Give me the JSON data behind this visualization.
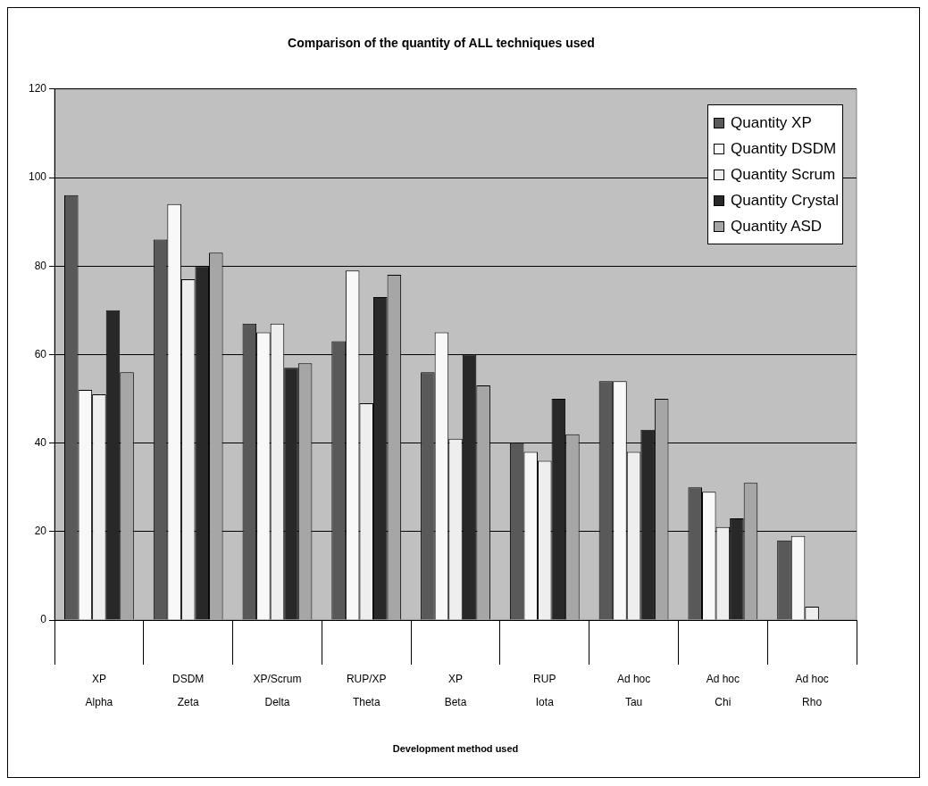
{
  "chart_data": {
    "type": "bar",
    "title": "Comparison of the quantity of ALL techniques used",
    "xlabel": "Development method used",
    "categories": [
      "XP\nAlpha",
      "DSDM\nZeta",
      "XP/Scrum\nDelta",
      "RUP/XP\nTheta",
      "XP\nBeta",
      "RUP\nIota",
      "Ad hoc\nTau",
      "Ad hoc\nChi",
      "Ad hoc\nRho"
    ],
    "series": [
      {
        "name": "Quantity XP",
        "color": "#595959",
        "values": [
          96,
          86,
          67,
          63,
          56,
          40,
          54,
          30,
          18
        ]
      },
      {
        "name": "Quantity DSDM",
        "color": "#f8f8f8",
        "values": [
          52,
          94,
          65,
          79,
          65,
          38,
          54,
          29,
          19
        ]
      },
      {
        "name": "Quantity Scrum",
        "color": "#eeeeee",
        "values": [
          51,
          77,
          67,
          49,
          41,
          36,
          38,
          21,
          3
        ]
      },
      {
        "name": "Quantity Crystal",
        "color": "#282828",
        "values": [
          70,
          80,
          57,
          73,
          60,
          50,
          43,
          23,
          null
        ]
      },
      {
        "name": "Quantity ASD",
        "color": "#a6a6a6",
        "values": [
          56,
          83,
          58,
          78,
          53,
          42,
          50,
          31,
          null
        ]
      }
    ],
    "ylim": [
      0,
      120
    ],
    "yticks": [
      0,
      20,
      40,
      60,
      80,
      100,
      120
    ],
    "grid": "y",
    "legend": "top right"
  }
}
